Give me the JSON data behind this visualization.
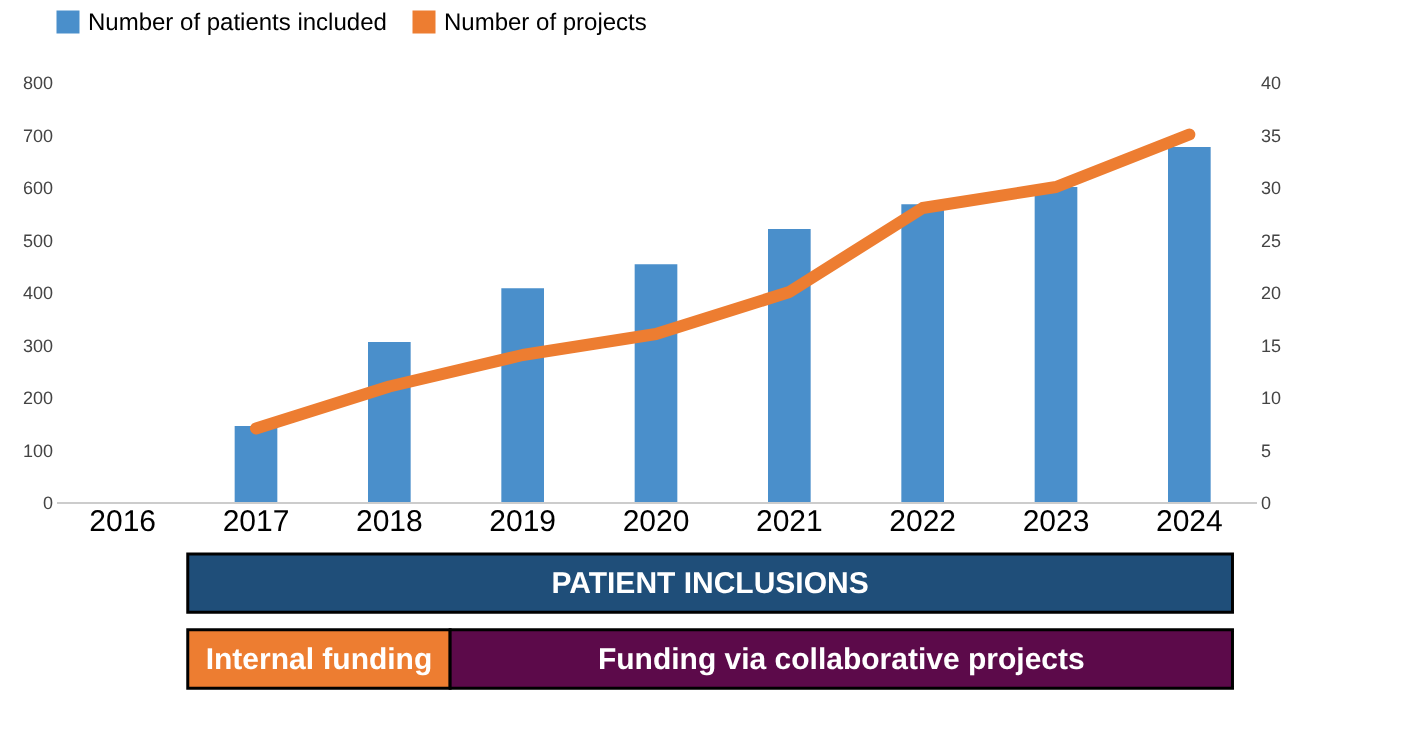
{
  "chart_data": {
    "type": "bar",
    "categories": [
      "2016",
      "2017",
      "2018",
      "2019",
      "2020",
      "2021",
      "2022",
      "2023",
      "2024"
    ],
    "series": [
      {
        "name": "Number of patients included",
        "color": "#4a8fcb",
        "values": [
          null,
          145,
          305,
          407,
          453,
          520,
          567,
          600,
          676
        ]
      },
      {
        "name": "Number of projects",
        "color": "#ed7d31",
        "type": "line",
        "axis": "y2",
        "values": [
          null,
          7,
          11,
          14,
          16,
          20,
          28,
          30,
          35
        ]
      }
    ],
    "ylim": [
      0,
      800
    ],
    "yticks": [
      0,
      100,
      200,
      300,
      400,
      500,
      600,
      700,
      800
    ],
    "y2lim": [
      0,
      40
    ],
    "y2ticks": [
      0,
      5,
      10,
      15,
      20,
      25,
      30,
      35,
      40
    ],
    "grid": false,
    "legend": "top",
    "marker": "none",
    "line_style": "solid",
    "annotations": [
      "PATIENT INCLUSIONS",
      "Internal funding",
      "Funding via collaborative projects"
    ]
  }
}
